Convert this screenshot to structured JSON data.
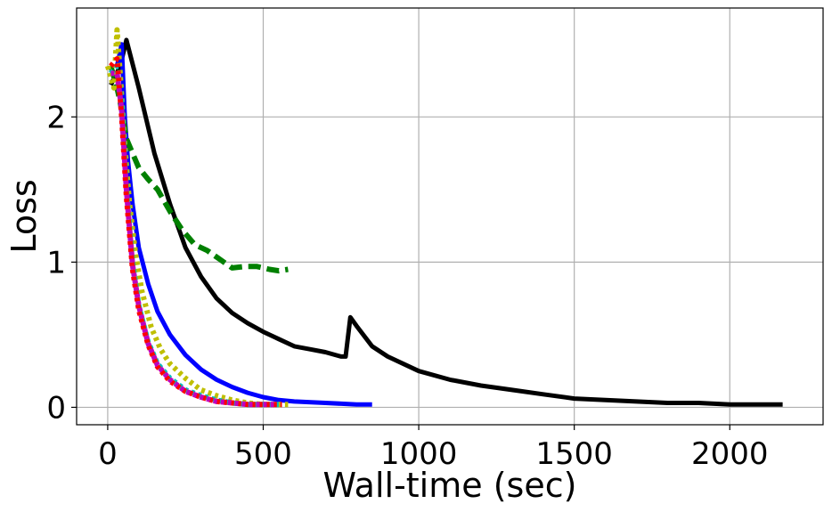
{
  "chart_data": {
    "type": "line",
    "title": "",
    "xlabel": "Wall-time (sec)",
    "ylabel": "Loss",
    "xlim": [
      -100,
      2300
    ],
    "ylim": [
      -0.12,
      2.75
    ],
    "xticks": [
      0,
      500,
      1000,
      1500,
      2000
    ],
    "xtick_labels": [
      "0",
      "500",
      "1000",
      "1500",
      "2000"
    ],
    "yticks": [
      0,
      1,
      2
    ],
    "ytick_labels": [
      "0",
      "1",
      "2"
    ],
    "grid": true,
    "legend": "none",
    "series": [
      {
        "color": "#000000",
        "style": "solid",
        "x": [
          10,
          40,
          60,
          100,
          150,
          200,
          250,
          300,
          350,
          400,
          450,
          500,
          550,
          600,
          650,
          700,
          750,
          765,
          780,
          800,
          850,
          900,
          1000,
          1100,
          1200,
          1300,
          1400,
          1500,
          1600,
          1700,
          1800,
          1900,
          2000,
          2100,
          2170
        ],
        "y": [
          2.22,
          2.35,
          2.53,
          2.2,
          1.75,
          1.4,
          1.1,
          0.9,
          0.75,
          0.65,
          0.58,
          0.52,
          0.47,
          0.42,
          0.4,
          0.38,
          0.35,
          0.35,
          0.62,
          0.56,
          0.42,
          0.35,
          0.25,
          0.19,
          0.15,
          0.12,
          0.09,
          0.06,
          0.05,
          0.04,
          0.03,
          0.03,
          0.02,
          0.02,
          0.02
        ]
      },
      {
        "color": "#0000ff",
        "style": "solid",
        "x": [
          30,
          45,
          55,
          65,
          80,
          100,
          130,
          160,
          200,
          250,
          300,
          350,
          400,
          450,
          500,
          550,
          600,
          700,
          800,
          850
        ],
        "y": [
          2.35,
          2.5,
          2.0,
          1.7,
          1.4,
          1.1,
          0.85,
          0.66,
          0.5,
          0.36,
          0.26,
          0.19,
          0.14,
          0.1,
          0.07,
          0.05,
          0.04,
          0.03,
          0.02,
          0.02
        ]
      },
      {
        "color": "#008000",
        "style": "dashed",
        "x": [
          10,
          30,
          45,
          60,
          80,
          100,
          130,
          160,
          200,
          240,
          280,
          320,
          360,
          400,
          440,
          480,
          520,
          550,
          580
        ],
        "y": [
          2.35,
          2.2,
          2.05,
          1.85,
          1.75,
          1.65,
          1.57,
          1.5,
          1.35,
          1.22,
          1.12,
          1.08,
          1.02,
          0.96,
          0.97,
          0.97,
          0.95,
          0.94,
          0.95
        ]
      },
      {
        "color": "#bfbf00",
        "style": "dotted",
        "x": [
          0,
          20,
          30,
          40,
          55,
          70,
          90,
          110,
          140,
          170,
          200,
          250,
          300,
          350,
          400,
          450,
          500,
          550,
          580
        ],
        "y": [
          2.35,
          2.2,
          2.6,
          2.3,
          1.8,
          1.4,
          1.05,
          0.8,
          0.55,
          0.4,
          0.3,
          0.2,
          0.12,
          0.08,
          0.05,
          0.03,
          0.02,
          0.02,
          0.02
        ]
      },
      {
        "color": "#00bfbf",
        "style": "dotted",
        "x": [
          10,
          30,
          45,
          60,
          80,
          100,
          130,
          160,
          200,
          250,
          300,
          350,
          400,
          450,
          500,
          550
        ],
        "y": [
          2.3,
          2.35,
          2.1,
          1.5,
          1.0,
          0.7,
          0.45,
          0.3,
          0.2,
          0.12,
          0.08,
          0.05,
          0.03,
          0.02,
          0.02,
          0.02
        ]
      },
      {
        "color": "#ff0000",
        "style": "dotted",
        "x": [
          10,
          30,
          45,
          60,
          80,
          100,
          130,
          160,
          200,
          250,
          300,
          350,
          400,
          450,
          500,
          560
        ],
        "y": [
          2.35,
          2.4,
          2.0,
          1.45,
          0.95,
          0.67,
          0.43,
          0.28,
          0.18,
          0.11,
          0.07,
          0.04,
          0.03,
          0.02,
          0.02,
          0.02
        ]
      },
      {
        "color": "#bf00bf",
        "style": "dotted",
        "x": [
          10,
          30,
          45,
          60,
          80,
          100,
          130,
          160,
          200,
          250,
          300,
          350,
          400,
          450,
          500,
          540
        ],
        "y": [
          2.3,
          2.3,
          2.05,
          1.5,
          0.98,
          0.7,
          0.44,
          0.29,
          0.19,
          0.11,
          0.07,
          0.04,
          0.03,
          0.02,
          0.02,
          0.02
        ]
      }
    ]
  }
}
